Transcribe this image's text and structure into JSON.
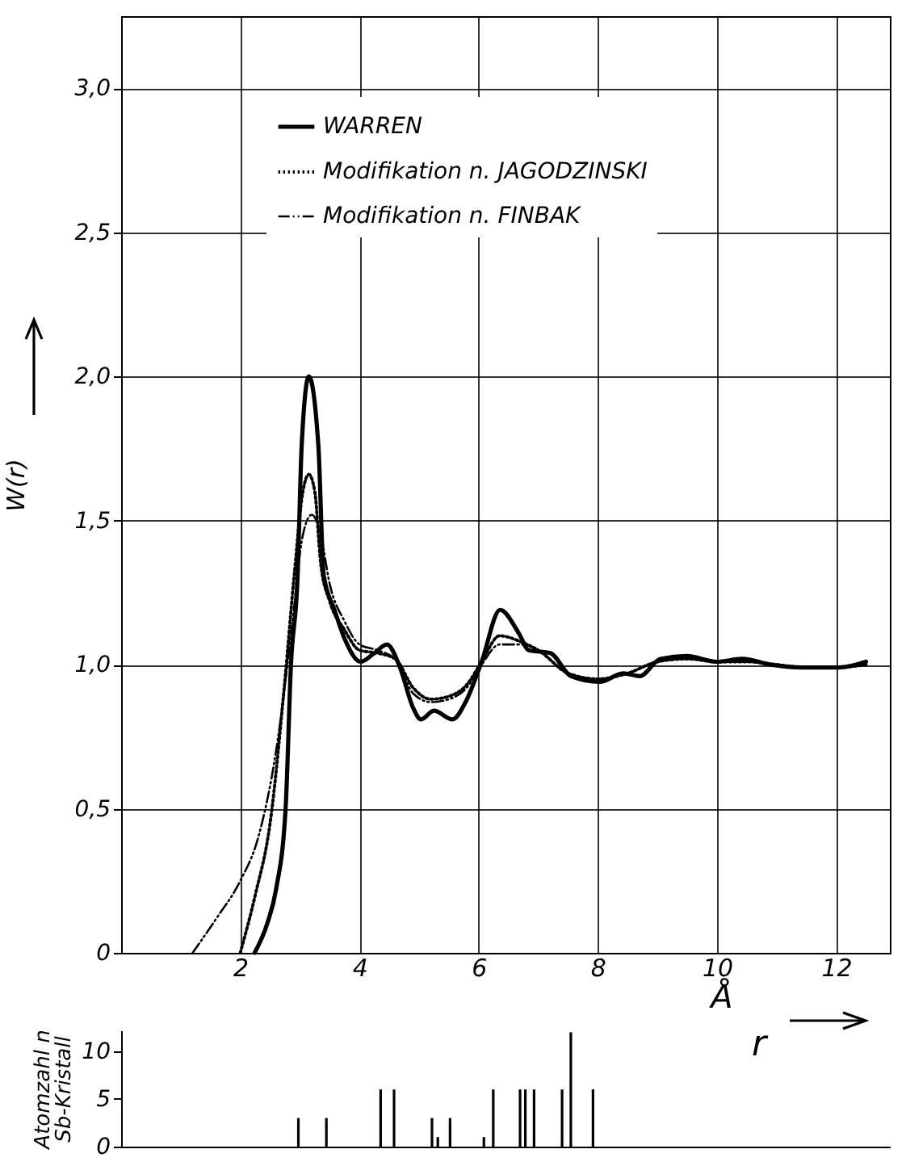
{
  "chart_data": [
    {
      "type": "line",
      "xlabel": "r",
      "ylabel": "W(r)",
      "annotations": [
        "Å"
      ],
      "xlim": [
        0,
        12.9
      ],
      "ylim": [
        0,
        3.25
      ],
      "xticks": [
        2,
        4,
        6,
        8,
        10,
        12
      ],
      "yticks": [
        0,
        {
          "value": 0.5,
          "label": "0,5"
        },
        {
          "value": 1.0,
          "label": "1,0"
        },
        {
          "value": 1.5,
          "label": "1,5"
        },
        {
          "value": 2.0,
          "label": "2,0"
        },
        {
          "value": 2.5,
          "label": "2,5"
        },
        {
          "value": 3.0,
          "label": "3,0"
        }
      ],
      "grid": true,
      "legend": "top",
      "marker": "none",
      "series": [
        {
          "name": "WARREN",
          "color": "#000000",
          "line_style": "solid",
          "x": [
            2.24,
            2.45,
            2.6,
            2.76,
            2.85,
            2.96,
            3.03,
            3.15,
            3.31,
            3.4,
            3.58,
            3.75,
            4.02,
            4.25,
            4.46,
            4.68,
            4.9,
            5.03,
            5.25,
            5.56,
            5.78,
            6.05,
            6.36,
            6.67,
            6.84,
            7.2,
            7.55,
            8.03,
            8.43,
            8.7,
            9.05,
            9.49,
            10.0,
            10.42,
            10.9,
            11.43,
            12.05,
            12.5
          ],
          "values": [
            0,
            0.1,
            0.22,
            0.5,
            1.0,
            1.3,
            1.76,
            2.0,
            1.76,
            1.31,
            1.19,
            1.09,
            1.01,
            1.04,
            1.07,
            0.99,
            0.85,
            0.81,
            0.84,
            0.81,
            0.87,
            1.01,
            1.19,
            1.11,
            1.05,
            1.04,
            0.96,
            0.94,
            0.97,
            0.96,
            1.02,
            1.03,
            1.01,
            1.02,
            1.0,
            0.99,
            0.99,
            1.01
          ]
        },
        {
          "name": "Modifikation n. JAGODZINSKI",
          "color": "#000000",
          "line_style": "dotted",
          "x": [
            2.0,
            2.25,
            2.5,
            2.75,
            2.9,
            3.05,
            3.15,
            3.25,
            3.35,
            3.5,
            3.75,
            4.0,
            4.3,
            4.6,
            4.9,
            5.2,
            5.5,
            5.8,
            6.05,
            6.35,
            6.7,
            7.0,
            7.5,
            8.0,
            8.5,
            9.0,
            9.5,
            10.0,
            10.5,
            11.0,
            11.5,
            12.0,
            12.5
          ],
          "values": [
            0,
            0.2,
            0.45,
            0.95,
            1.3,
            1.6,
            1.66,
            1.6,
            1.35,
            1.22,
            1.12,
            1.05,
            1.04,
            1.02,
            0.92,
            0.88,
            0.89,
            0.93,
            1.01,
            1.1,
            1.08,
            1.05,
            0.97,
            0.95,
            0.97,
            1.01,
            1.02,
            1.01,
            1.01,
            1.0,
            0.99,
            0.99,
            1.0
          ]
        },
        {
          "name": "Modifikation n. FINBAK",
          "color": "#000000",
          "line_style": "dashed",
          "x": [
            1.2,
            1.6,
            2.0,
            2.3,
            2.6,
            2.85,
            3.05,
            3.2,
            3.35,
            3.5,
            3.75,
            4.0,
            4.3,
            4.6,
            4.9,
            5.2,
            5.5,
            5.8,
            6.05,
            6.35,
            6.7,
            7.0,
            7.5,
            8.0,
            8.5,
            9.0,
            9.5,
            10.0,
            10.5,
            11.0,
            11.5,
            12.0,
            12.5
          ],
          "values": [
            0,
            0.12,
            0.25,
            0.4,
            0.7,
            1.1,
            1.45,
            1.52,
            1.45,
            1.28,
            1.15,
            1.07,
            1.05,
            1.02,
            0.9,
            0.87,
            0.88,
            0.92,
            1.0,
            1.07,
            1.07,
            1.05,
            0.97,
            0.95,
            0.97,
            1.01,
            1.02,
            1.01,
            1.01,
            1.0,
            0.99,
            0.99,
            1.0
          ]
        }
      ]
    },
    {
      "type": "bar",
      "ylabel": "Atomzahl n Sb-Kristall",
      "xlim": [
        0,
        12.9
      ],
      "ylim": [
        0,
        12.2
      ],
      "yticks": [
        0,
        5,
        10
      ],
      "tick_labels": "y",
      "grid": false,
      "x": [
        2.9,
        3.38,
        4.31,
        4.54,
        5.19,
        5.29,
        5.5,
        6.08,
        6.24,
        6.7,
        6.79,
        6.94,
        7.42,
        7.57,
        7.95
      ],
      "values": [
        3,
        3,
        6,
        6,
        3,
        1,
        3,
        1,
        6,
        6,
        6,
        6,
        6,
        12,
        6
      ],
      "color": "#000000"
    }
  ]
}
